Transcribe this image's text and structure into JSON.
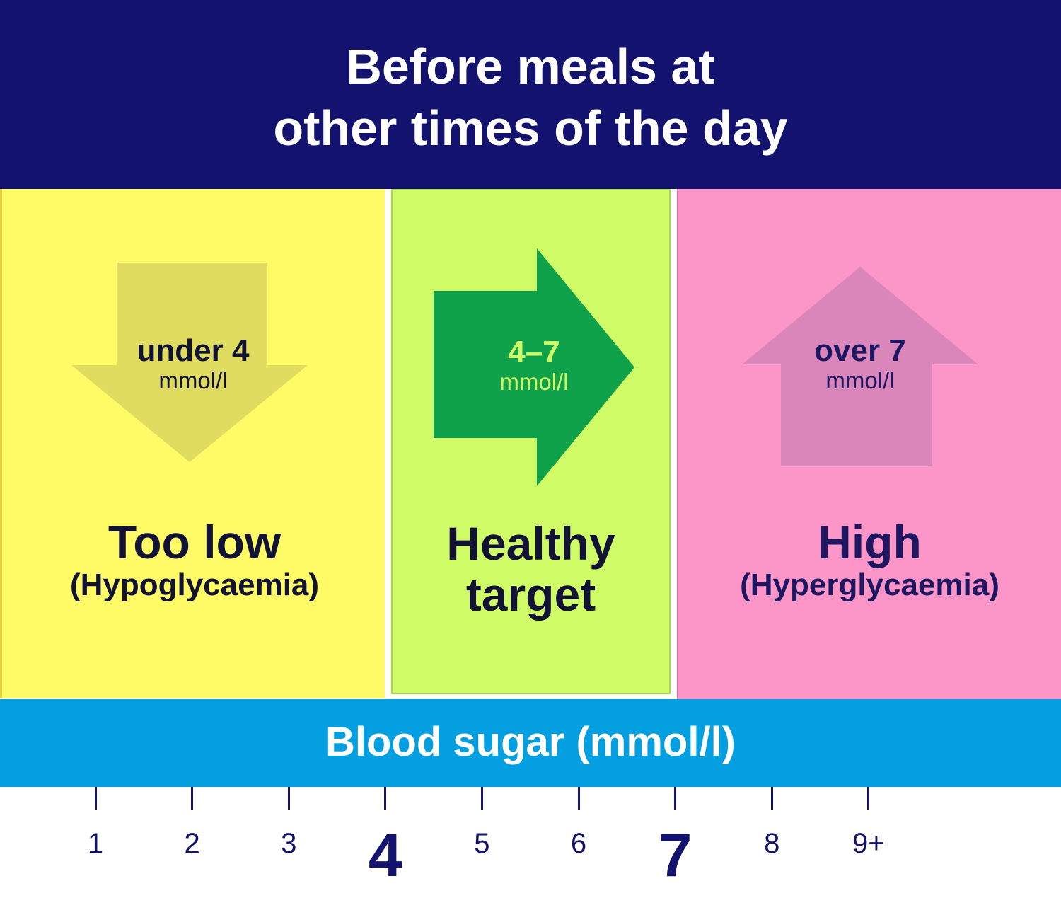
{
  "header": {
    "line1": "Before meals at",
    "line2": "other times of the day"
  },
  "colors": {
    "header_bg": "#13136f",
    "low_bg": "#fefb66",
    "low_arrow": "#dfdc60",
    "healthy_bg": "#cffc66",
    "healthy_arrow": "#0fa24b",
    "healthy_arrow_text": "#cffc66",
    "high_bg": "#fd96c8",
    "high_arrow": "#db86bb",
    "axis_bar": "#049fe0",
    "text_dark": "#121235"
  },
  "zones": {
    "low": {
      "range": "under 4",
      "unit": "mmol/l",
      "title": "Too low",
      "subtitle": "(Hypoglycaemia)",
      "arrow_icon": "arrow-down-icon"
    },
    "healthy": {
      "range": "4–7",
      "unit": "mmol/l",
      "title_line1": "Healthy",
      "title_line2": "target",
      "arrow_icon": "arrow-right-icon"
    },
    "high": {
      "range": "over 7",
      "unit": "mmol/l",
      "title": "High",
      "subtitle": "(Hyperglycaemia)",
      "arrow_icon": "arrow-up-icon"
    }
  },
  "axis": {
    "title": "Blood sugar (mmol/l)",
    "ticks": [
      {
        "label": "1",
        "major": false
      },
      {
        "label": "2",
        "major": false
      },
      {
        "label": "3",
        "major": false
      },
      {
        "label": "4",
        "major": true
      },
      {
        "label": "5",
        "major": false
      },
      {
        "label": "6",
        "major": false
      },
      {
        "label": "7",
        "major": true
      },
      {
        "label": "8",
        "major": false
      },
      {
        "label": "9+",
        "major": false
      }
    ]
  }
}
